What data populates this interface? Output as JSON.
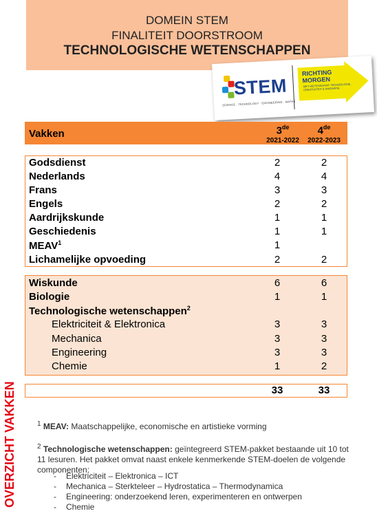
{
  "header": {
    "line1": "DOMEIN STEM",
    "line2": "FINALITEIT DOORSTROOM",
    "line3": "TECHNOLOGISCHE WETENSCHAPPEN"
  },
  "logo": {
    "stem": "STEM",
    "stem_sub": "SCIENCE · TECHNOLOGY · ENGINEERING · MATHS",
    "arrow_line1": "RICHTING",
    "arrow_line2": "MORGEN",
    "arrow_small": "MET WETENSCHAP, TECHNOLOGIE, CREATIVITEIT & INNOVATIE",
    "arrow_color": "#f2e600",
    "stem_color": "#1c3f8f"
  },
  "table": {
    "header": {
      "label": "Vakken",
      "col3_num": "3",
      "col3_sup": "de",
      "col3_year": "2021-2022",
      "col4_num": "4",
      "col4_sup": "de",
      "col4_year": "2022-2023"
    },
    "group1": [
      {
        "label": "Godsdienst",
        "v3": "2",
        "v4": "2"
      },
      {
        "label": "Nederlands",
        "v3": "4",
        "v4": "4"
      },
      {
        "label": "Frans",
        "v3": "3",
        "v4": "3"
      },
      {
        "label": "Engels",
        "v3": "2",
        "v4": "2"
      },
      {
        "label": "Aardrijkskunde",
        "v3": "1",
        "v4": "1"
      },
      {
        "label": "Geschiedenis",
        "v3": "1",
        "v4": "1"
      },
      {
        "label": "MEAV",
        "sup": "1",
        "v3": "1",
        "v4": ""
      },
      {
        "label": "Lichamelijke opvoeding",
        "v3": "2",
        "v4": "2"
      }
    ],
    "group2": [
      {
        "label": "Wiskunde",
        "v3": "6",
        "v4": "6"
      },
      {
        "label": "Biologie",
        "v3": "1",
        "v4": "1"
      },
      {
        "label": "Technologische wetenschappen",
        "sup": "2",
        "v3": "",
        "v4": ""
      },
      {
        "label": "Elektriciteit & Elektronica",
        "v3": "3",
        "v4": "3"
      },
      {
        "label": "Mechanica",
        "v3": "3",
        "v4": "3"
      },
      {
        "label": "Engineering",
        "v3": "3",
        "v4": "3"
      },
      {
        "label": "Chemie",
        "v3": "1",
        "v4": "2"
      }
    ],
    "totals": {
      "v3": "33",
      "v4": "33"
    }
  },
  "side_label": "OVERZICHT VAKKEN",
  "notes": {
    "n1_sup": "1",
    "n1_bold": "MEAV:",
    "n1_text": "Maatschappelijke, economische en artistieke vorming",
    "n2_sup": "2",
    "n2_bold": "Technologische wetenschappen:",
    "n2_text": "geïntegreerd STEM-pakket bestaande uit 10 tot 11 lesuren. Het pakket omvat naast enkele kenmerkende STEM-doelen de volgende componenten:",
    "list": [
      "Elektriciteit – Elektronica – ICT",
      "Mechanica – Sterkteleer – Hydrostatica – Thermodynamica",
      "Engineering: onderzoekend leren, experimenteren en ontwerpen",
      "Chemie"
    ]
  },
  "colors": {
    "header_band": "#f9c09a",
    "table_header": "#f58634",
    "shaded_group": "#fbe4d3",
    "side_label": "#e30613"
  }
}
